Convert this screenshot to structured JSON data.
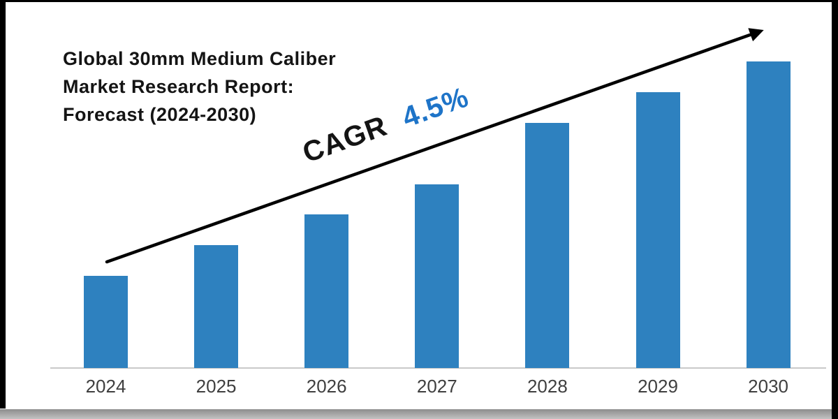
{
  "window": {
    "background": "#ffffff"
  },
  "title": {
    "lines": [
      "Global 30mm Medium Caliber",
      "Market Research Report:",
      "Forecast (2024-2030)"
    ],
    "full": "Global 30mm Medium Caliber Market Research Report: Forecast (2024-2030)"
  },
  "cagr": {
    "label": "CAGR",
    "value": "4.5%"
  },
  "chart_data": {
    "type": "bar",
    "categories": [
      "2024",
      "2025",
      "2026",
      "2027",
      "2028",
      "2029",
      "2030"
    ],
    "values": [
      30,
      40,
      50,
      60,
      80,
      90,
      100
    ],
    "values_note": "relative index estimated from bar heights (2030 = 100); no numeric y-axis is shown in the image",
    "title": "Global 30mm Medium Caliber Market Research Report: Forecast (2024-2030)",
    "xlabel": "",
    "ylabel": "",
    "ylim": [
      0,
      105
    ],
    "grid": false,
    "legend": false,
    "annotations": [
      "CAGR 4.5%",
      "black upward trend arrow from first bar to top right"
    ]
  },
  "colors": {
    "bar": "#2E81BF",
    "cagr_value_blue": "#1E74C8",
    "text_black": "#141414",
    "tick_label": "#3F3F3F",
    "axis_line": "#C9C9C9",
    "frame_black": "#000000",
    "bottom_band_top": "#8C8C8C",
    "bottom_band_bottom": "#C2C2C2"
  }
}
